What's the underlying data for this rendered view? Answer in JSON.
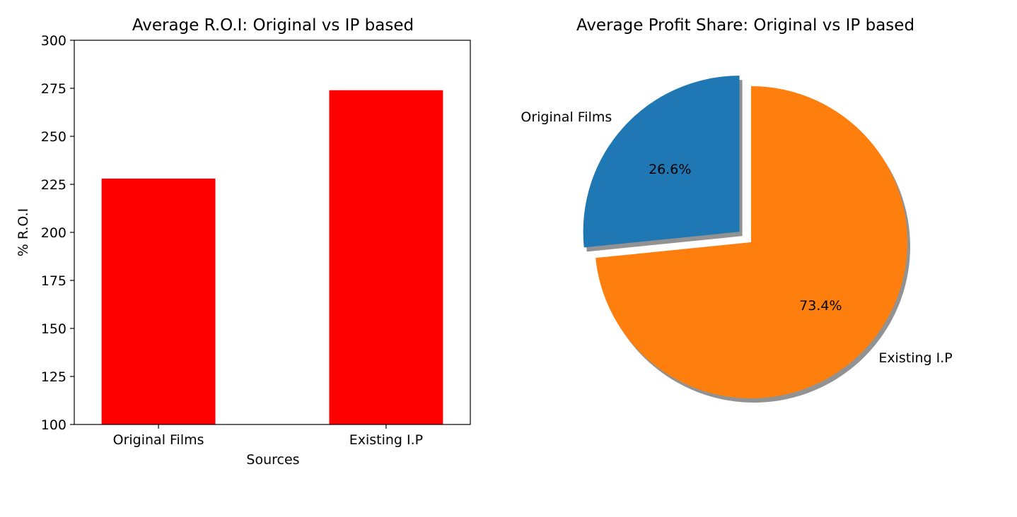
{
  "chart_data": [
    {
      "type": "bar",
      "title": "Average R.O.I: Original vs IP based",
      "xlabel": "Sources",
      "ylabel": "% R.O.I",
      "categories": [
        "Original Films",
        "Existing I.P"
      ],
      "values": [
        228,
        274
      ],
      "ylim": [
        100,
        300
      ],
      "yticks": [
        100,
        125,
        150,
        175,
        200,
        225,
        250,
        275,
        300
      ],
      "bar_color": "#ff0000",
      "grid": false
    },
    {
      "type": "pie",
      "title": "Average Profit Share: Original vs IP based",
      "labels": [
        "Original Films",
        "Existing I.P"
      ],
      "values": [
        26.6,
        73.4
      ],
      "percent_labels": [
        "26.6%",
        "73.4%"
      ],
      "colors": [
        "#1f77b4",
        "#ff7f0e"
      ],
      "explode": [
        0.1,
        0
      ],
      "start_angle": 90,
      "shadow": true
    }
  ]
}
